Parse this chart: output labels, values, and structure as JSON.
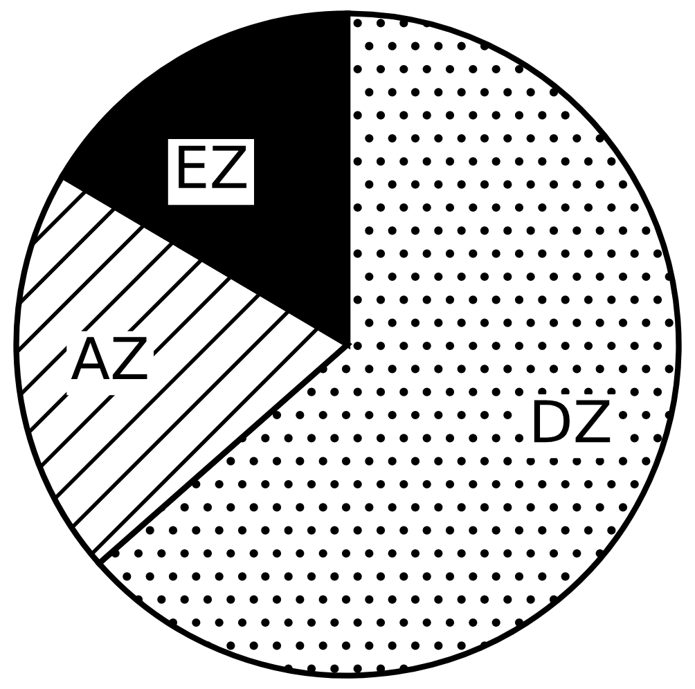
{
  "chart_data": {
    "type": "pie",
    "categories": [
      "DZ",
      "AZ",
      "EZ"
    ],
    "values": [
      63.5,
      20,
      16.5
    ],
    "colors": [
      "#ffffff",
      "#ffffff",
      "#000000"
    ]
  }
}
